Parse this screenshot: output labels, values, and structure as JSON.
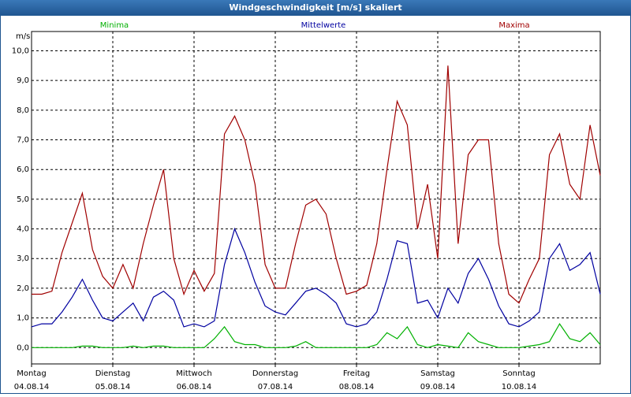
{
  "chart_data": {
    "type": "line",
    "title": "Windgeschwindigkeit [m/s] skaliert",
    "y_label": "m/s",
    "xlim": [
      0,
      168
    ],
    "xticks": [
      {
        "value": 0,
        "label": [
          "Montag",
          "04.08.14"
        ]
      },
      {
        "value": 24,
        "label": [
          "Dienstag",
          "05.08.14"
        ]
      },
      {
        "value": 48,
        "label": [
          "Mittwoch",
          "06.08.14"
        ]
      },
      {
        "value": 72,
        "label": [
          "Donnerstag",
          "07.08.14"
        ]
      },
      {
        "value": 96,
        "label": [
          "Freitag",
          "08.08.14"
        ]
      },
      {
        "value": 120,
        "label": [
          "Samstag",
          "09.08.14"
        ]
      },
      {
        "value": 144,
        "label": [
          "Sonntag",
          "10.08.14"
        ]
      }
    ],
    "ylim": [
      -0.55,
      10.65
    ],
    "yticks": [
      {
        "value": 0,
        "label": "0,0"
      },
      {
        "value": 1,
        "label": "1,0"
      },
      {
        "value": 2,
        "label": "2,0"
      },
      {
        "value": 3,
        "label": "3,0"
      },
      {
        "value": 4,
        "label": "4,0"
      },
      {
        "value": 5,
        "label": "5,0"
      },
      {
        "value": 6,
        "label": "6,0"
      },
      {
        "value": 7,
        "label": "7,0"
      },
      {
        "value": 8,
        "label": "8,0"
      },
      {
        "value": 9,
        "label": "9,0"
      },
      {
        "value": 10,
        "label": "10,0"
      }
    ],
    "grid": true,
    "x": [
      0,
      3,
      6,
      9,
      12,
      15,
      18,
      21,
      24,
      27,
      30,
      33,
      36,
      39,
      42,
      45,
      48,
      51,
      54,
      57,
      60,
      63,
      66,
      69,
      72,
      75,
      78,
      81,
      84,
      87,
      90,
      93,
      96,
      99,
      102,
      105,
      108,
      111,
      114,
      117,
      120,
      123,
      126,
      129,
      132,
      135,
      138,
      141,
      144,
      147,
      150,
      153,
      156,
      159,
      162,
      165,
      168
    ],
    "series": [
      {
        "name": "Minima",
        "color": "#00b000",
        "values": [
          0,
          0,
          0,
          0,
          0,
          0.05,
          0.05,
          0,
          0,
          0,
          0.05,
          0,
          0.05,
          0.05,
          0,
          0,
          0,
          0,
          0.3,
          0.7,
          0.2,
          0.1,
          0.1,
          0,
          0,
          0,
          0.05,
          0.2,
          0,
          0,
          0,
          0,
          0,
          0,
          0.1,
          0.5,
          0.3,
          0.7,
          0.1,
          0,
          0.1,
          0.05,
          0,
          0.5,
          0.2,
          0.1,
          0,
          0,
          0,
          0.05,
          0.1,
          0.2,
          0.8,
          0.3,
          0.2,
          0.5,
          0.1
        ]
      },
      {
        "name": "Mittelwerte",
        "color": "#0000a0",
        "values": [
          0.7,
          0.8,
          0.8,
          1.2,
          1.7,
          2.3,
          1.6,
          1.0,
          0.9,
          1.2,
          1.5,
          0.9,
          1.7,
          1.9,
          1.6,
          0.7,
          0.8,
          0.7,
          0.9,
          2.8,
          4.0,
          3.2,
          2.2,
          1.4,
          1.2,
          1.1,
          1.5,
          1.9,
          2.0,
          1.8,
          1.5,
          0.8,
          0.7,
          0.8,
          1.2,
          2.3,
          3.6,
          3.5,
          1.5,
          1.6,
          1.0,
          2.0,
          1.5,
          2.5,
          3.0,
          2.3,
          1.4,
          0.8,
          0.7,
          0.9,
          1.2,
          3.0,
          3.5,
          2.6,
          2.8,
          3.2,
          1.8
        ]
      },
      {
        "name": "Maxima",
        "color": "#a00000",
        "values": [
          1.8,
          1.8,
          1.9,
          3.2,
          4.2,
          5.2,
          3.3,
          2.4,
          2.0,
          2.8,
          2.0,
          3.5,
          4.8,
          6.0,
          3.0,
          1.8,
          2.6,
          1.9,
          2.5,
          7.2,
          7.8,
          7.0,
          5.5,
          2.8,
          2.0,
          2.0,
          3.5,
          4.8,
          5.0,
          4.5,
          3.0,
          1.8,
          1.9,
          2.1,
          3.5,
          6.0,
          8.3,
          7.5,
          4.0,
          5.5,
          3.0,
          9.5,
          3.5,
          6.5,
          7.0,
          7.0,
          3.5,
          1.8,
          1.5,
          2.3,
          3.0,
          6.5,
          7.2,
          5.5,
          5.0,
          7.5,
          5.8
        ]
      }
    ]
  }
}
